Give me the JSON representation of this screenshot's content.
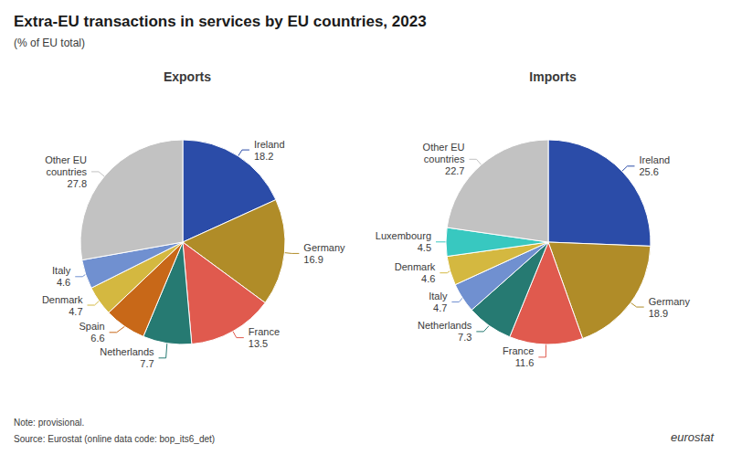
{
  "title": "Extra-EU transactions in services by EU countries, 2023",
  "subtitle": "(% of EU total)",
  "note": "Note: provisional.",
  "source": "Source: Eurostat (online data code: bop_its6_det)",
  "annotations": [
    "eurostat"
  ],
  "chart_data": [
    {
      "type": "pie",
      "title": "Exports",
      "categories": [
        "Ireland",
        "Germany",
        "France",
        "Netherlands",
        "Spain",
        "Denmark",
        "Italy",
        "Other EU\ncountries"
      ],
      "values": [
        18.2,
        16.9,
        13.5,
        7.7,
        6.6,
        4.7,
        4.6,
        27.8
      ],
      "colors": [
        "#2b4ca8",
        "#b08c28",
        "#e05a4e",
        "#267a72",
        "#c86818",
        "#d4b840",
        "#7090d0",
        "#c2c2c2"
      ],
      "data_labels": true
    },
    {
      "type": "pie",
      "title": "Imports",
      "categories": [
        "Ireland",
        "Germany",
        "France",
        "Netherlands",
        "Italy",
        "Denmark",
        "Luxembourg",
        "Other EU\ncountries"
      ],
      "values": [
        25.6,
        18.9,
        11.6,
        7.3,
        4.7,
        4.6,
        4.5,
        22.7
      ],
      "colors": [
        "#2b4ca8",
        "#b08c28",
        "#e05a4e",
        "#267a72",
        "#7090d0",
        "#d4b840",
        "#38c8c0",
        "#c2c2c2"
      ],
      "data_labels": true
    }
  ]
}
